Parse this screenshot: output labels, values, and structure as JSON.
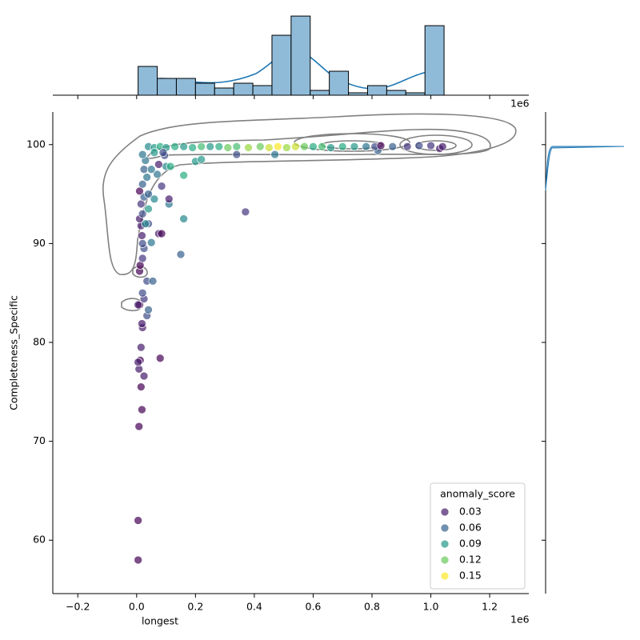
{
  "chart_data": {
    "type": "scatter",
    "xlabel": "longest",
    "ylabel": "Completeness_Specific",
    "x_offset_label": "1e6",
    "xlim": [
      -285000,
      1333000
    ],
    "ylim": [
      54.6,
      103.3
    ],
    "xticks": [
      {
        "value": -200000,
        "label": "−0.2"
      },
      {
        "value": 0,
        "label": "0.0"
      },
      {
        "value": 200000,
        "label": "0.2"
      },
      {
        "value": 400000,
        "label": "0.4"
      },
      {
        "value": 600000,
        "label": "0.6"
      },
      {
        "value": 800000,
        "label": "0.8"
      },
      {
        "value": 1000000,
        "label": "1.0"
      },
      {
        "value": 1200000,
        "label": "1.2"
      }
    ],
    "yticks": [
      60,
      70,
      80,
      90,
      100
    ],
    "colormap": "viridis",
    "x": [
      5000,
      5000,
      8000,
      18000,
      15000,
      25000,
      8000,
      12000,
      5000,
      80000,
      15000,
      20000,
      18000,
      35000,
      40000,
      10000,
      5000,
      25000,
      20000,
      35000,
      55000,
      10000,
      12000,
      20000,
      25000,
      20000,
      18000,
      75000,
      85000,
      50000,
      150000,
      15000,
      40000,
      30000,
      160000,
      10000,
      20000,
      40000,
      15000,
      110000,
      370000,
      25000,
      60000,
      110000,
      10000,
      40000,
      85000,
      20000,
      35000,
      70000,
      160000,
      25000,
      50000,
      100000,
      75000,
      115000,
      30000,
      200000,
      95000,
      220000,
      340000,
      470000,
      820000,
      1030000,
      40000,
      60000,
      80000,
      100000,
      130000,
      160000,
      190000,
      220000,
      250000,
      280000,
      310000,
      340000,
      380000,
      420000,
      450000,
      480000,
      510000,
      540000,
      570000,
      600000,
      630000,
      660000,
      700000,
      740000,
      780000,
      810000,
      830000,
      870000,
      920000,
      960000,
      1000000,
      1040000,
      60000,
      90000,
      20000
    ],
    "y": [
      58.0,
      62.0,
      71.5,
      73.2,
      75.5,
      76.6,
      77.3,
      78.2,
      78.0,
      78.4,
      79.5,
      81.5,
      81.9,
      82.7,
      83.3,
      83.8,
      83.8,
      84.4,
      85.0,
      86.2,
      86.2,
      87.2,
      87.8,
      88.5,
      89.5,
      90.0,
      90.8,
      91.0,
      91.0,
      90.1,
      88.9,
      91.8,
      92.0,
      92.0,
      92.5,
      92.5,
      93.0,
      93.5,
      94.0,
      94.0,
      93.2,
      94.7,
      94.5,
      94.5,
      95.3,
      95.0,
      95.8,
      96.0,
      96.7,
      97.0,
      96.9,
      97.5,
      97.5,
      97.8,
      98.0,
      97.8,
      98.4,
      98.3,
      98.9,
      98.5,
      99.0,
      99.0,
      99.4,
      99.6,
      99.8,
      99.7,
      99.8,
      99.7,
      99.8,
      99.8,
      99.7,
      99.8,
      99.8,
      99.8,
      99.7,
      99.8,
      99.7,
      99.8,
      99.7,
      99.8,
      99.7,
      99.8,
      99.8,
      99.8,
      99.8,
      99.7,
      99.8,
      99.8,
      99.8,
      99.8,
      99.9,
      99.8,
      99.8,
      99.9,
      99.9,
      99.8,
      99.2,
      99.2,
      99.0
    ],
    "hue": [
      0.02,
      0.02,
      0.02,
      0.02,
      0.02,
      0.03,
      0.03,
      0.02,
      0.03,
      0.02,
      0.03,
      0.03,
      0.03,
      0.05,
      0.06,
      0.02,
      0.03,
      0.04,
      0.05,
      0.05,
      0.06,
      0.02,
      0.02,
      0.04,
      0.05,
      0.05,
      0.03,
      0.03,
      0.02,
      0.07,
      0.06,
      0.03,
      0.05,
      0.08,
      0.08,
      0.03,
      0.05,
      0.09,
      0.04,
      0.07,
      0.04,
      0.06,
      0.08,
      0.03,
      0.02,
      0.06,
      0.04,
      0.06,
      0.07,
      0.07,
      0.1,
      0.06,
      0.07,
      0.08,
      0.03,
      0.1,
      0.07,
      0.09,
      0.05,
      0.09,
      0.05,
      0.07,
      0.06,
      0.03,
      0.08,
      0.09,
      0.1,
      0.09,
      0.1,
      0.09,
      0.1,
      0.11,
      0.09,
      0.1,
      0.12,
      0.11,
      0.13,
      0.12,
      0.14,
      0.15,
      0.13,
      0.14,
      0.12,
      0.1,
      0.11,
      0.09,
      0.1,
      0.09,
      0.07,
      0.05,
      0.02,
      0.06,
      0.04,
      0.05,
      0.04,
      0.03,
      0.09,
      0.05,
      0.07
    ],
    "legend": {
      "title": "anomaly_score",
      "corner": "lower right",
      "values": [
        0.03,
        0.06,
        0.09,
        0.12,
        0.15
      ]
    },
    "hist_x": {
      "color": "#8fbbd9",
      "bins": [
        5000,
        70000,
        135000,
        200000,
        265000,
        330000,
        395000,
        460000,
        525000,
        590000,
        655000,
        720000,
        785000,
        850000,
        915000,
        980000,
        1045000
      ],
      "counts": [
        12,
        7,
        7,
        5,
        3,
        5,
        4,
        25,
        33,
        2,
        10,
        1,
        4,
        2,
        1,
        29
      ],
      "ylim": [
        0,
        34.7
      ]
    }
  }
}
